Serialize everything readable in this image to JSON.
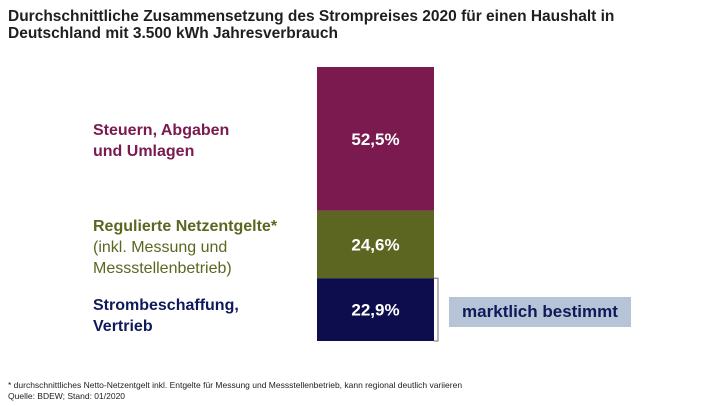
{
  "chart_data": {
    "type": "bar",
    "title": "Durchschnittliche Zusammensetzung des Strompreises 2020 für einen Haushalt in Deutschland mit 3.500 kWh Jahresverbrauch",
    "title_lines": [
      "Durchschnittliche Zusammensetzung des Strompreises 2020 für einen Haushalt in",
      "Deutschland mit 3.500 kWh Jahresverbrauch"
    ],
    "stacked": true,
    "unit": "%",
    "segments": [
      {
        "name": "Steuern, Abgaben und Umlagen",
        "label_lines": [
          "Steuern, Abgaben",
          "und Umlagen"
        ],
        "value": 52.5,
        "value_label": "52,5%",
        "color": "#7a1a4f"
      },
      {
        "name": "Regulierte Netzentgelte* (inkl. Messung und Messstellenbetrieb)",
        "label_lines": [
          "Regulierte Netzentgelte*",
          "(inkl. Messung und",
          "Messstellenbetrieb)"
        ],
        "value": 24.6,
        "value_label": "24,6%",
        "color": "#5c6621"
      },
      {
        "name": "Strombeschaffung, Vertrieb",
        "label_lines": [
          "Strombeschaffung,",
          "Vertrieb"
        ],
        "value": 22.9,
        "value_label": "22,9%",
        "color": "#0d0d4d"
      }
    ],
    "annotation": "marktlich bestimmt",
    "footnote": "* durchschnittliches Netto-Netzentgelt inkl. Entgelte für Messung und Messstellenbetrieb, kann regional deutlich variieren",
    "source": "Quelle: BDEW; Stand: 01/2020"
  }
}
